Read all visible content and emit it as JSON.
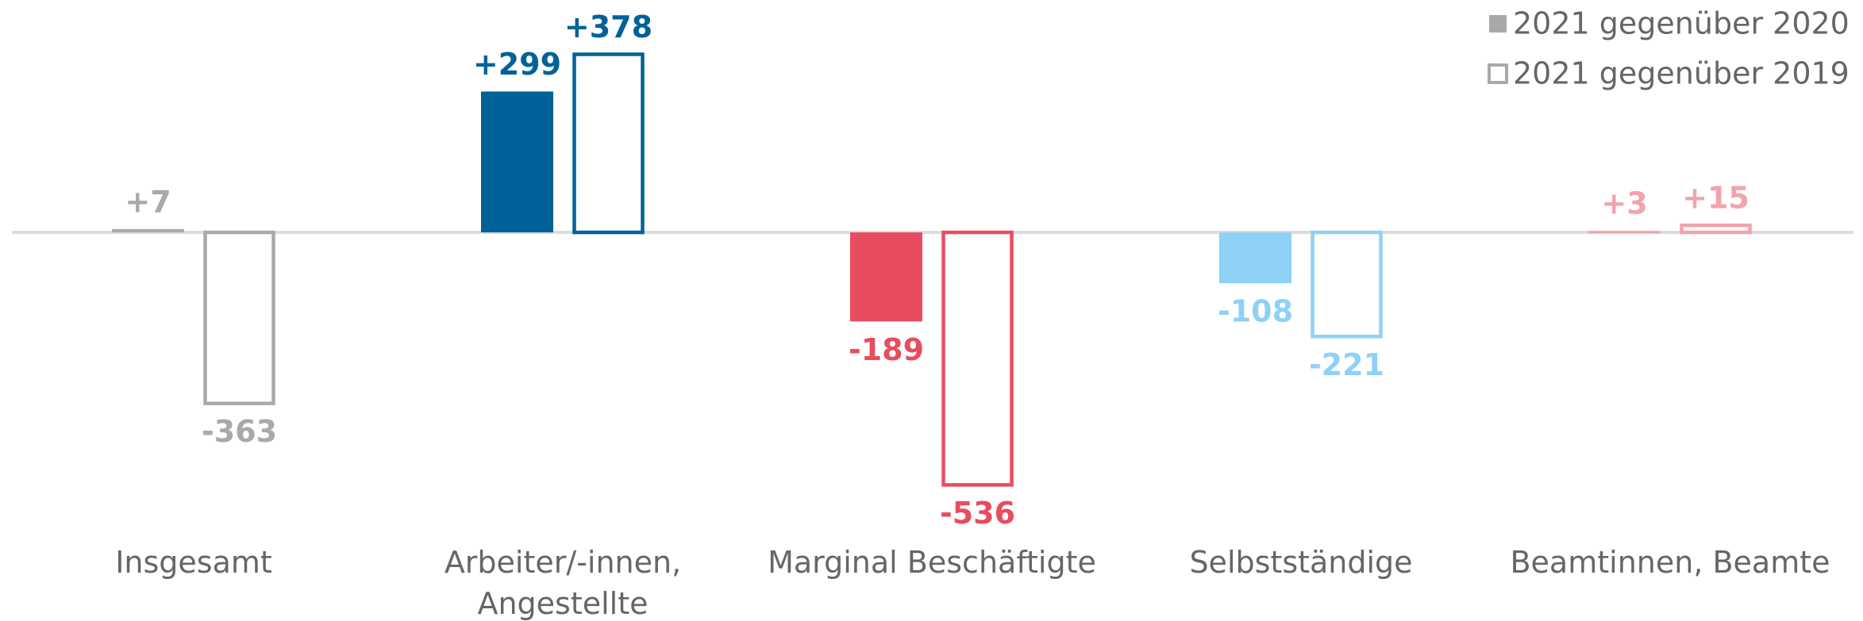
{
  "chart_data": {
    "type": "bar",
    "categories": [
      "Insgesamt",
      "Arbeiter/-innen, Angestellte",
      "Marginal Beschäftigte",
      "Selbstständige",
      "Beamtinnen, Beamte"
    ],
    "colors": [
      "#a9a9a9",
      "#006298",
      "#e84c5f",
      "#8fd0f7",
      "#f2a3ad"
    ],
    "series": [
      {
        "name": "2021 gegenüber 2020",
        "style": "filled",
        "values": [
          7,
          299,
          -189,
          -108,
          3
        ],
        "value_labels": [
          "+7",
          "+299",
          "-189",
          "-108",
          "+3"
        ]
      },
      {
        "name": "2021 gegenüber 2019",
        "style": "outline",
        "values": [
          -363,
          378,
          -536,
          -221,
          15
        ],
        "value_labels": [
          "-363",
          "+378",
          "-536",
          "-221",
          "+15"
        ]
      }
    ],
    "legend": "top-right"
  }
}
